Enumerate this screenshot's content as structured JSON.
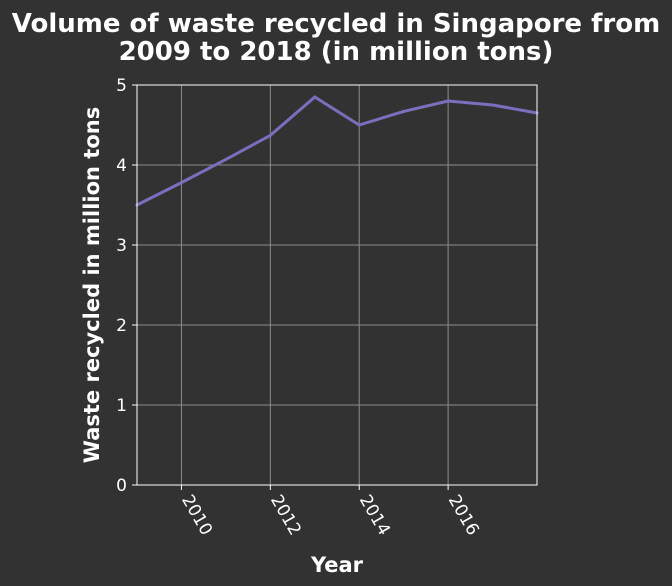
{
  "chart_data": {
    "type": "line",
    "title_line1": "Volume of waste recycled in Singapore from",
    "title_line2": "2009 to 2018 (in million tons)",
    "xlabel": "Year",
    "ylabel": "Waste recycled in million tons",
    "x": [
      2009,
      2010,
      2011,
      2012,
      2013,
      2014,
      2015,
      2016,
      2017,
      2018
    ],
    "series": [
      {
        "values": [
          3.5,
          3.78,
          4.07,
          4.37,
          4.85,
          4.5,
          4.67,
          4.8,
          4.75,
          4.65
        ]
      }
    ],
    "xlim": [
      2009,
      2018
    ],
    "ylim": [
      0,
      5
    ],
    "xticks": [
      "2010",
      "2012",
      "2014",
      "2016"
    ],
    "yticks": [
      "0",
      "1",
      "2",
      "3",
      "4",
      "5"
    ],
    "grid": true,
    "colors": {
      "background": "#323232",
      "line": "#7b6fbd",
      "text": "#ffffff",
      "grid": "#8c8c8c"
    }
  }
}
